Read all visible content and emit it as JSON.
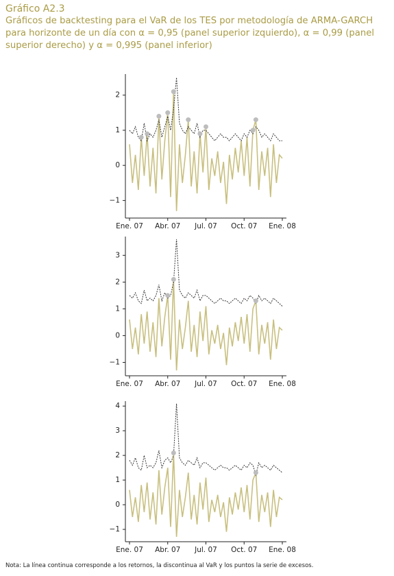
{
  "header": {
    "title": "Gráfico A2.3",
    "subtitle": "Gráficos de backtesting para el VaR de los TES por metodología de ARMA-GARCH para horizonte de un día con α = 0,95 (panel superior izquierdo), α = 0,99 (panel superior derecho) y α = 0,995 (panel inferior)"
  },
  "note": "Nota: La línea continua corresponde a los retornos, la discontinua al VaR y los puntos la serie de excesos.",
  "chart_data": [
    {
      "type": "line",
      "categories": [
        "Ene. 07",
        null,
        null,
        null,
        null,
        null,
        null,
        null,
        null,
        null,
        null,
        null,
        null,
        "Abr. 07",
        null,
        null,
        null,
        null,
        null,
        null,
        null,
        null,
        null,
        null,
        null,
        null,
        "Jul. 07",
        null,
        null,
        null,
        null,
        null,
        null,
        null,
        null,
        null,
        null,
        null,
        null,
        "Oct. 07",
        null,
        null,
        null,
        null,
        null,
        null,
        null,
        null,
        null,
        null,
        null,
        null,
        "Ene. 08"
      ],
      "ylim": [
        -1.5,
        2.6
      ],
      "yticks": [
        {
          "value": -1,
          "label": "−1"
        },
        0,
        1,
        2
      ],
      "series": [
        {
          "color": "#c8bf7f",
          "style": "solid",
          "values": [
            0.6,
            -0.5,
            0.3,
            -0.7,
            0.8,
            -0.3,
            0.9,
            -0.6,
            0.5,
            -0.8,
            1.4,
            -0.4,
            0.7,
            1.5,
            -0.9,
            2.1,
            -1.3,
            0.6,
            -0.5,
            0.3,
            1.3,
            -0.6,
            0.4,
            -0.8,
            0.9,
            -0.2,
            1.1,
            -0.7,
            0.2,
            -0.3,
            0.4,
            -0.5,
            0.1,
            -1.1,
            0.3,
            -0.4,
            0.5,
            -0.2,
            0.7,
            -0.3,
            0.8,
            -0.6,
            1.0,
            1.3,
            -0.7,
            0.4,
            -0.3,
            0.5,
            -0.9,
            0.6,
            -0.5,
            0.3,
            0.2
          ]
        },
        {
          "color": "#333333",
          "style": "dashed",
          "values": [
            1.0,
            0.9,
            1.1,
            0.8,
            0.7,
            1.2,
            0.7,
            0.9,
            0.8,
            1.0,
            1.3,
            0.8,
            1.1,
            1.4,
            1.0,
            1.6,
            2.5,
            1.2,
            1.0,
            0.9,
            1.1,
            1.0,
            0.9,
            1.2,
            0.8,
            1.0,
            1.0,
            0.9,
            0.8,
            0.7,
            0.8,
            0.9,
            0.8,
            0.8,
            0.7,
            0.8,
            0.9,
            0.8,
            0.7,
            0.9,
            0.8,
            1.0,
            0.9,
            1.1,
            1.0,
            0.8,
            0.9,
            0.8,
            0.7,
            0.9,
            0.8,
            0.7,
            0.7
          ]
        },
        {
          "color": "#bdbdbd",
          "style": "points",
          "values": [
            null,
            null,
            null,
            null,
            0.8,
            null,
            0.9,
            null,
            null,
            null,
            1.4,
            null,
            null,
            1.5,
            null,
            2.1,
            null,
            null,
            null,
            null,
            1.3,
            null,
            null,
            null,
            0.9,
            null,
            1.1,
            null,
            null,
            null,
            null,
            null,
            null,
            null,
            null,
            null,
            null,
            null,
            null,
            null,
            null,
            null,
            1.0,
            1.3,
            null,
            null,
            null,
            null,
            null,
            null,
            null,
            null,
            null
          ]
        }
      ]
    },
    {
      "type": "line",
      "categories": [
        "Ene. 07",
        null,
        null,
        null,
        null,
        null,
        null,
        null,
        null,
        null,
        null,
        null,
        null,
        "Abr. 07",
        null,
        null,
        null,
        null,
        null,
        null,
        null,
        null,
        null,
        null,
        null,
        null,
        "Jul. 07",
        null,
        null,
        null,
        null,
        null,
        null,
        null,
        null,
        null,
        null,
        null,
        null,
        "Oct. 07",
        null,
        null,
        null,
        null,
        null,
        null,
        null,
        null,
        null,
        null,
        null,
        null,
        "Ene. 08"
      ],
      "ylim": [
        -1.5,
        3.7
      ],
      "yticks": [
        {
          "value": -1,
          "label": "−1"
        },
        0,
        1,
        2,
        3
      ],
      "series": [
        {
          "color": "#c8bf7f",
          "style": "solid",
          "values": [
            0.6,
            -0.5,
            0.3,
            -0.7,
            0.8,
            -0.3,
            0.9,
            -0.6,
            0.5,
            -0.8,
            1.4,
            -0.4,
            0.7,
            1.5,
            -0.9,
            2.1,
            -1.3,
            0.6,
            -0.5,
            0.3,
            1.3,
            -0.6,
            0.4,
            -0.8,
            0.9,
            -0.2,
            1.1,
            -0.7,
            0.2,
            -0.3,
            0.4,
            -0.5,
            0.1,
            -1.1,
            0.3,
            -0.4,
            0.5,
            -0.2,
            0.7,
            -0.3,
            0.8,
            -0.6,
            1.0,
            1.3,
            -0.7,
            0.4,
            -0.3,
            0.5,
            -0.9,
            0.6,
            -0.5,
            0.3,
            0.2
          ]
        },
        {
          "color": "#333333",
          "style": "dashed",
          "values": [
            1.5,
            1.4,
            1.6,
            1.3,
            1.2,
            1.7,
            1.3,
            1.4,
            1.3,
            1.5,
            1.9,
            1.3,
            1.6,
            1.4,
            1.5,
            2.0,
            3.6,
            1.7,
            1.5,
            1.4,
            1.6,
            1.5,
            1.4,
            1.7,
            1.3,
            1.5,
            1.5,
            1.4,
            1.3,
            1.2,
            1.3,
            1.4,
            1.3,
            1.3,
            1.2,
            1.3,
            1.4,
            1.3,
            1.2,
            1.4,
            1.3,
            1.5,
            1.4,
            1.2,
            1.5,
            1.3,
            1.4,
            1.3,
            1.2,
            1.4,
            1.3,
            1.2,
            1.1
          ]
        },
        {
          "color": "#bdbdbd",
          "style": "points",
          "values": [
            null,
            null,
            null,
            null,
            null,
            null,
            null,
            null,
            null,
            null,
            null,
            null,
            null,
            1.5,
            null,
            2.1,
            null,
            null,
            null,
            null,
            null,
            null,
            null,
            null,
            null,
            null,
            null,
            null,
            null,
            null,
            null,
            null,
            null,
            null,
            null,
            null,
            null,
            null,
            null,
            null,
            null,
            null,
            null,
            1.3,
            null,
            null,
            null,
            null,
            null,
            null,
            null,
            null,
            null
          ]
        }
      ]
    },
    {
      "type": "line",
      "categories": [
        "Ene. 07",
        null,
        null,
        null,
        null,
        null,
        null,
        null,
        null,
        null,
        null,
        null,
        null,
        "Abr. 07",
        null,
        null,
        null,
        null,
        null,
        null,
        null,
        null,
        null,
        null,
        null,
        null,
        "Jul. 07",
        null,
        null,
        null,
        null,
        null,
        null,
        null,
        null,
        null,
        null,
        null,
        null,
        "Oct. 07",
        null,
        null,
        null,
        null,
        null,
        null,
        null,
        null,
        null,
        null,
        null,
        null,
        "Ene. 08"
      ],
      "ylim": [
        -1.5,
        4.2
      ],
      "yticks": [
        {
          "value": -1,
          "label": "−1"
        },
        0,
        1,
        2,
        3,
        4
      ],
      "series": [
        {
          "color": "#c8bf7f",
          "style": "solid",
          "values": [
            0.6,
            -0.5,
            0.3,
            -0.7,
            0.8,
            -0.3,
            0.9,
            -0.6,
            0.5,
            -0.8,
            1.4,
            -0.4,
            0.7,
            1.5,
            -0.9,
            2.1,
            -1.3,
            0.6,
            -0.5,
            0.3,
            1.3,
            -0.6,
            0.4,
            -0.8,
            0.9,
            -0.2,
            1.1,
            -0.7,
            0.2,
            -0.3,
            0.4,
            -0.5,
            0.1,
            -1.1,
            0.3,
            -0.4,
            0.5,
            -0.2,
            0.7,
            -0.3,
            0.8,
            -0.6,
            1.0,
            1.3,
            -0.7,
            0.4,
            -0.3,
            0.5,
            -0.9,
            0.6,
            -0.5,
            0.3,
            0.2
          ]
        },
        {
          "color": "#333333",
          "style": "dashed",
          "values": [
            1.8,
            1.6,
            1.9,
            1.5,
            1.4,
            2.0,
            1.5,
            1.6,
            1.5,
            1.7,
            2.2,
            1.5,
            1.8,
            1.9,
            1.7,
            2.0,
            4.1,
            1.9,
            1.7,
            1.6,
            1.8,
            1.7,
            1.6,
            1.9,
            1.5,
            1.7,
            1.7,
            1.6,
            1.5,
            1.4,
            1.5,
            1.6,
            1.5,
            1.5,
            1.4,
            1.5,
            1.6,
            1.5,
            1.4,
            1.6,
            1.5,
            1.7,
            1.6,
            1.2,
            1.7,
            1.5,
            1.6,
            1.5,
            1.4,
            1.6,
            1.5,
            1.4,
            1.3
          ]
        },
        {
          "color": "#bdbdbd",
          "style": "points",
          "values": [
            null,
            null,
            null,
            null,
            null,
            null,
            null,
            null,
            null,
            null,
            null,
            null,
            null,
            null,
            null,
            2.1,
            null,
            null,
            null,
            null,
            null,
            null,
            null,
            null,
            null,
            null,
            null,
            null,
            null,
            null,
            null,
            null,
            null,
            null,
            null,
            null,
            null,
            null,
            null,
            null,
            null,
            null,
            null,
            1.3,
            null,
            null,
            null,
            null,
            null,
            null,
            null,
            null,
            null
          ]
        }
      ]
    }
  ]
}
